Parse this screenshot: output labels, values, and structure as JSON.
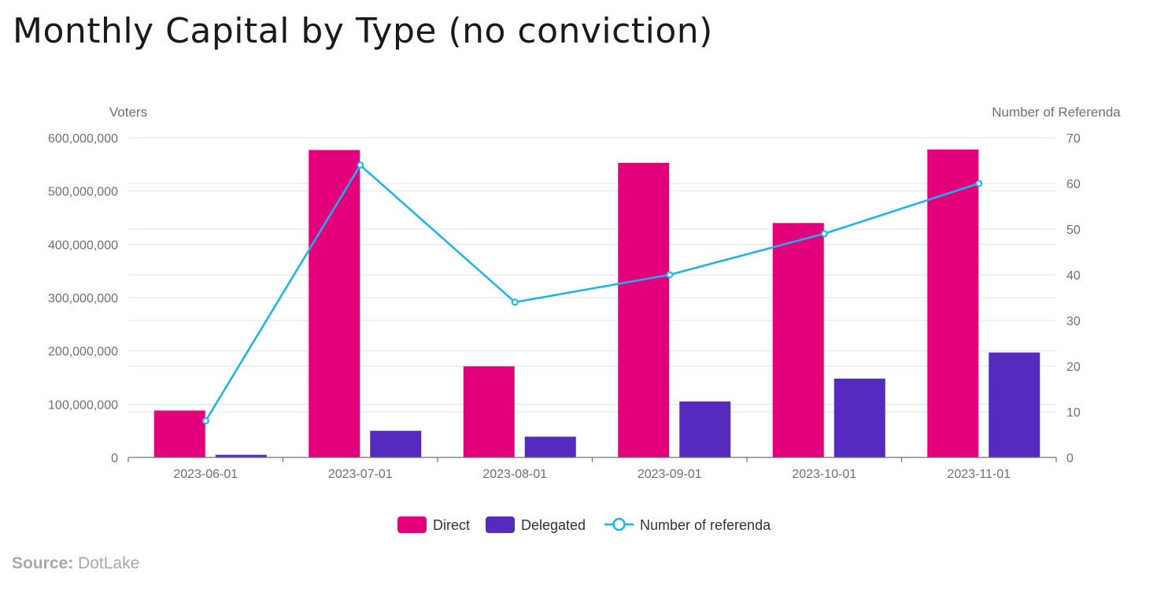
{
  "title": "Monthly Capital by Type (no conviction)",
  "source": {
    "label": "Source:",
    "value": "DotLake"
  },
  "colors": {
    "direct": "#e3007a",
    "delegated": "#552bbf",
    "referenda": "#17b4f0"
  },
  "chart_data": {
    "type": "bar",
    "categories": [
      "2023-06-01",
      "2023-07-01",
      "2023-08-01",
      "2023-09-01",
      "2023-10-01",
      "2023-11-01"
    ],
    "series": [
      {
        "name": "Direct",
        "type": "bar",
        "axis": "left",
        "values": [
          88000000,
          577000000,
          171000000,
          553000000,
          440000000,
          578000000
        ]
      },
      {
        "name": "Delegated",
        "type": "bar",
        "axis": "left",
        "values": [
          5000000,
          50000000,
          39000000,
          105000000,
          148000000,
          197000000
        ]
      },
      {
        "name": "Number of referenda",
        "type": "line",
        "axis": "right",
        "values": [
          8,
          64,
          34,
          40,
          49,
          60
        ]
      }
    ],
    "ylabel": "Voters",
    "y2label": "Number of Referenda",
    "ylim": [
      0,
      600000000
    ],
    "y2lim": [
      0,
      70
    ],
    "yticks": [
      "0",
      "100,000,000",
      "200,000,000",
      "300,000,000",
      "400,000,000",
      "500,000,000",
      "600,000,000"
    ],
    "y2ticks": [
      "0",
      "10",
      "20",
      "30",
      "40",
      "50",
      "60",
      "70"
    ],
    "grid": true,
    "legend": "bottom"
  }
}
